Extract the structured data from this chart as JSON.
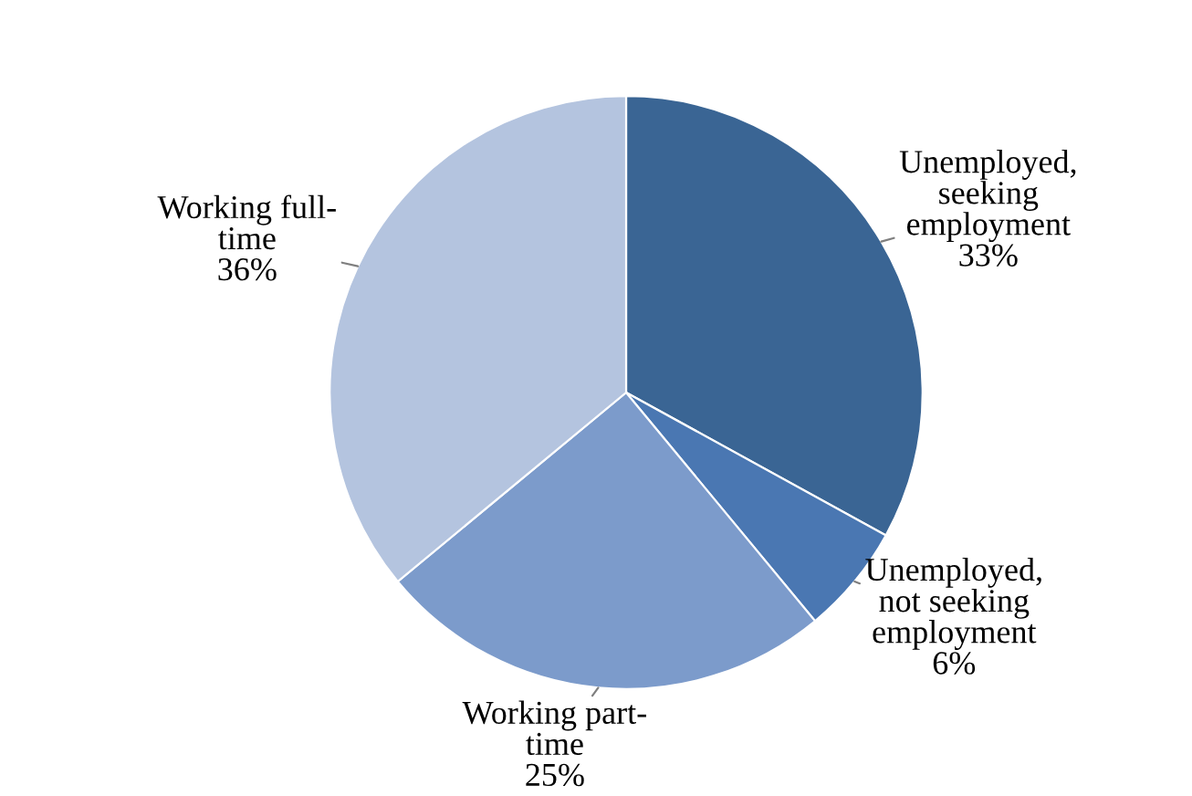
{
  "chart_data": {
    "type": "pie",
    "categories": [
      "Unemployed,\nseeking\nemployment",
      "Unemployed,\nnot seeking\nemployment",
      "Working part-\ntime",
      "Working full-\ntime"
    ],
    "values": [
      33,
      6,
      25,
      36
    ],
    "colors": [
      "#3a6594",
      "#4a77b2",
      "#7c9bcb",
      "#b4c4df"
    ],
    "value_labels": [
      "33%",
      "6%",
      "25%",
      "36%"
    ]
  }
}
